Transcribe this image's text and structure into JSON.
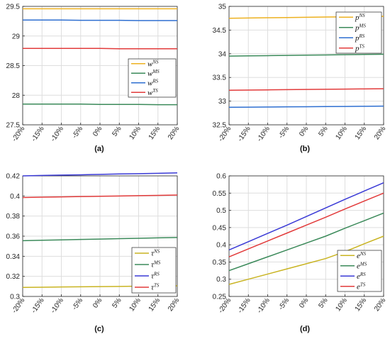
{
  "chart_data": [
    {
      "type": "line",
      "caption": "(a)",
      "categories": [
        "-20%",
        "-15%",
        "-10%",
        "-5%",
        "0%",
        "5%",
        "10%",
        "15%",
        "20%"
      ],
      "ylim": [
        27.5,
        29.5
      ],
      "yticks": [
        "27.5",
        "28",
        "28.5",
        "29",
        "29.5"
      ],
      "grid": true,
      "legend_position": "right",
      "series": [
        {
          "name": "w",
          "sup": "NS",
          "color": "#EDB120",
          "values": [
            29.46,
            29.46,
            29.46,
            29.46,
            29.46,
            29.46,
            29.46,
            29.46,
            29.46
          ]
        },
        {
          "name": "w",
          "sup": "MS",
          "color": "#3B8A5A",
          "values": [
            27.85,
            27.85,
            27.85,
            27.85,
            27.845,
            27.845,
            27.845,
            27.84,
            27.84
          ]
        },
        {
          "name": "w",
          "sup": "RS",
          "color": "#2E6FD1",
          "values": [
            29.27,
            29.27,
            29.27,
            29.265,
            29.265,
            29.265,
            29.26,
            29.26,
            29.26
          ]
        },
        {
          "name": "w",
          "sup": "TS",
          "color": "#E23B3B",
          "values": [
            28.79,
            28.79,
            28.79,
            28.79,
            28.79,
            28.785,
            28.785,
            28.785,
            28.785
          ]
        }
      ]
    },
    {
      "type": "line",
      "caption": "(b)",
      "categories": [
        "-20%",
        "-15%",
        "-10%",
        "-5%",
        "0%",
        "5%",
        "10%",
        "15%",
        "20%"
      ],
      "ylim": [
        32.5,
        35
      ],
      "yticks": [
        "32.5",
        "33",
        "33.5",
        "34",
        "34.5",
        "35"
      ],
      "grid": true,
      "legend_position": "top-right",
      "series": [
        {
          "name": "p",
          "sup": "NS",
          "color": "#EDB120",
          "values": [
            34.75,
            34.755,
            34.76,
            34.765,
            34.77,
            34.775,
            34.78,
            34.785,
            34.79
          ]
        },
        {
          "name": "p",
          "sup": "MS",
          "color": "#3B8A5A",
          "values": [
            33.95,
            33.955,
            33.96,
            33.965,
            33.97,
            33.975,
            33.98,
            33.985,
            33.99
          ]
        },
        {
          "name": "p",
          "sup": "RS",
          "color": "#2E6FD1",
          "values": [
            32.87,
            32.873,
            32.876,
            32.879,
            32.882,
            32.885,
            32.888,
            32.891,
            32.894
          ]
        },
        {
          "name": "p",
          "sup": "TS",
          "color": "#E23B3B",
          "values": [
            33.23,
            33.234,
            33.238,
            33.242,
            33.246,
            33.25,
            33.254,
            33.258,
            33.262
          ]
        }
      ]
    },
    {
      "type": "line",
      "caption": "(c)",
      "categories": [
        "-20%",
        "-15%",
        "-10%",
        "-5%",
        "0%",
        "5%",
        "10%",
        "15%",
        "20%"
      ],
      "ylim": [
        0.3,
        0.42
      ],
      "yticks": [
        "0.3",
        "0.32",
        "0.34",
        "0.36",
        "0.38",
        "0.4",
        "0.42"
      ],
      "grid": true,
      "legend_position": "bottom-right",
      "series": [
        {
          "name": "τ",
          "sup": "NS",
          "color": "#C9B422",
          "values": [
            0.309,
            0.3092,
            0.3094,
            0.3096,
            0.3098,
            0.31,
            0.3102,
            0.3104,
            0.3106
          ]
        },
        {
          "name": "τ",
          "sup": "MS",
          "color": "#3B8A5A",
          "values": [
            0.3555,
            0.3559,
            0.3563,
            0.3567,
            0.3571,
            0.3575,
            0.3579,
            0.3583,
            0.3587
          ]
        },
        {
          "name": "τ",
          "sup": "RS",
          "color": "#3A3AD6",
          "values": [
            0.42,
            0.4204,
            0.4208,
            0.4211,
            0.4215,
            0.4219,
            0.4222,
            0.4226,
            0.423
          ]
        },
        {
          "name": "τ",
          "sup": "TS",
          "color": "#E23B3B",
          "values": [
            0.3985,
            0.3988,
            0.3991,
            0.3994,
            0.3997,
            0.4,
            0.4003,
            0.4006,
            0.4009
          ]
        }
      ]
    },
    {
      "type": "line",
      "caption": "(d)",
      "categories": [
        "-20%",
        "-15%",
        "-10%",
        "-5%",
        "0%",
        "5%",
        "10%",
        "15%",
        "20%"
      ],
      "ylim": [
        0.25,
        0.6
      ],
      "yticks": [
        "0.25",
        "0.3",
        "0.35",
        "0.4",
        "0.45",
        "0.5",
        "0.55",
        "0.6"
      ],
      "grid": true,
      "legend_position": "bottom-right",
      "series": [
        {
          "name": "e",
          "sup": "NS",
          "color": "#C9B422",
          "values": [
            0.285,
            0.3,
            0.315,
            0.33,
            0.345,
            0.36,
            0.38,
            0.403,
            0.425
          ]
        },
        {
          "name": "e",
          "sup": "MS",
          "color": "#3B8A5A",
          "values": [
            0.325,
            0.345,
            0.365,
            0.385,
            0.405,
            0.425,
            0.448,
            0.47,
            0.492
          ]
        },
        {
          "name": "e",
          "sup": "RS",
          "color": "#3A3AD6",
          "values": [
            0.385,
            0.409,
            0.433,
            0.457,
            0.482,
            0.507,
            0.532,
            0.556,
            0.58
          ]
        },
        {
          "name": "e",
          "sup": "TS",
          "color": "#E23B3B",
          "values": [
            0.365,
            0.388,
            0.411,
            0.434,
            0.457,
            0.48,
            0.504,
            0.527,
            0.55
          ]
        }
      ]
    }
  ]
}
